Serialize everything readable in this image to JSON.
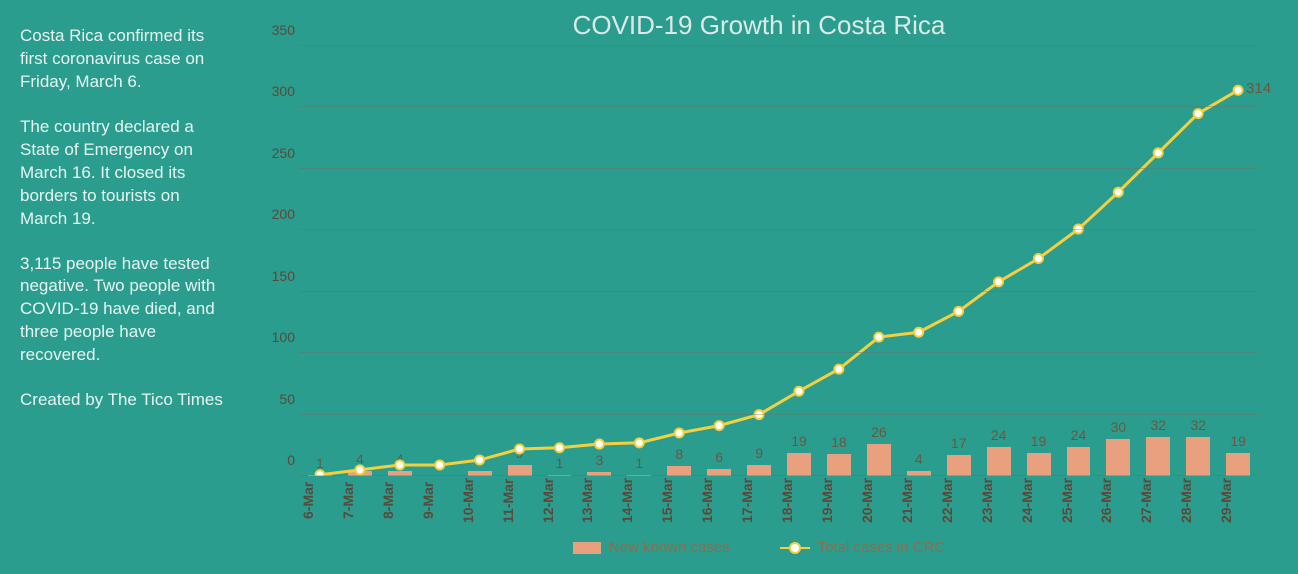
{
  "sidebar": {
    "p1": "Costa Rica confirmed its first coronavirus case on Friday, March 6.",
    "p2": "The country declared a State of Emergency on March 16. It closed its borders to tourists on March 19.",
    "p3": "3,115 people have tested negative. Two people with COVID-19 have died, and three people have recovered.",
    "p4": "Created by The Tico Times"
  },
  "chart": {
    "title": "COVID-19 Growth in Costa Rica",
    "type": "bar+line",
    "background_color": "#2a9d8f",
    "bar_color": "#e8a07e",
    "line_color": "#f4d03f",
    "marker_fill": "#ffffff",
    "marker_stroke": "#f4d03f",
    "grid_color": "rgba(120,100,80,0.35)",
    "text_color": "#5a4a3a",
    "label_fontsize": 14,
    "title_fontsize": 26,
    "ylim": [
      0,
      350
    ],
    "ytick_step": 50,
    "yticks": [
      0,
      50,
      100,
      150,
      200,
      250,
      300,
      350
    ],
    "categories": [
      "6-Mar",
      "7-Mar",
      "8-Mar",
      "9-Mar",
      "10-Mar",
      "11-Mar",
      "12-Mar",
      "13-Mar",
      "14-Mar",
      "15-Mar",
      "16-Mar",
      "17-Mar",
      "18-Mar",
      "19-Mar",
      "20-Mar",
      "21-Mar",
      "22-Mar",
      "23-Mar",
      "24-Mar",
      "25-Mar",
      "26-Mar",
      "27-Mar",
      "28-Mar",
      "29-Mar"
    ],
    "new_cases": [
      1,
      4,
      4,
      0,
      4,
      9,
      1,
      3,
      1,
      8,
      6,
      9,
      19,
      18,
      26,
      4,
      17,
      24,
      19,
      24,
      30,
      32,
      32,
      19
    ],
    "total_cases": [
      1,
      5,
      9,
      9,
      13,
      22,
      23,
      26,
      27,
      35,
      41,
      50,
      69,
      87,
      113,
      117,
      134,
      158,
      177,
      201,
      231,
      263,
      295,
      314
    ],
    "end_label": "314",
    "legend": {
      "bars": "New known cases",
      "line": "Total cases in CRC"
    }
  }
}
